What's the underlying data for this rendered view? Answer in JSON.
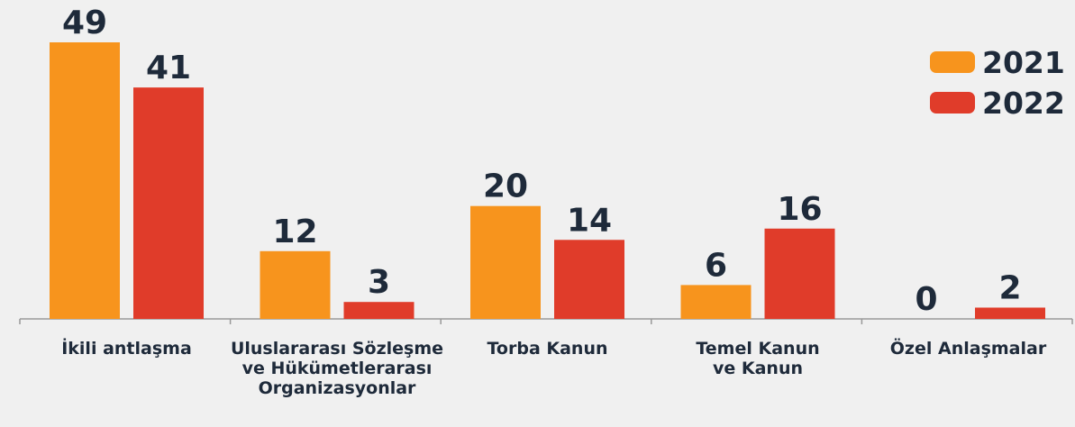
{
  "chart_data": {
    "type": "bar",
    "categories": [
      "İkili antlaşma",
      "Uluslararası Sözleşme\nve Hükümetlerarası\nOrganizasyonlar",
      "Torba Kanun",
      "Temel Kanun\nve Kanun",
      "Özel Anlaşmalar"
    ],
    "series": [
      {
        "name": "2021",
        "color": "#f7941d",
        "values": [
          49,
          12,
          20,
          6,
          0
        ]
      },
      {
        "name": "2022",
        "color": "#e03c2a",
        "values": [
          41,
          3,
          14,
          16,
          2
        ]
      }
    ],
    "legend": "top-right"
  }
}
